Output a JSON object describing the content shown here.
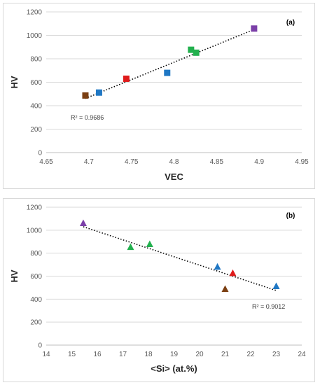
{
  "chart_data": [
    {
      "type": "scatter",
      "panel_label": "(a)",
      "xlabel": "VEC",
      "ylabel": "HV",
      "xlim": [
        4.65,
        4.95
      ],
      "ylim": [
        0,
        1200
      ],
      "xticks": [
        4.65,
        4.7,
        4.75,
        4.8,
        4.85,
        4.9,
        4.95
      ],
      "yticks": [
        0,
        200,
        400,
        600,
        800,
        1000,
        1200
      ],
      "xtick_labels": [
        "4.65",
        "4.7",
        "4.75",
        "4.8",
        "4.85",
        "4.9",
        "4.95"
      ],
      "ytick_labels": [
        "0",
        "200",
        "400",
        "600",
        "800",
        "1000",
        "1200"
      ],
      "grid": true,
      "marker": "square",
      "points": [
        {
          "x": 4.696,
          "y": 487,
          "color": "#7b3f12"
        },
        {
          "x": 4.712,
          "y": 512,
          "color": "#1f77c4"
        },
        {
          "x": 4.744,
          "y": 630,
          "color": "#e01b1b"
        },
        {
          "x": 4.792,
          "y": 680,
          "color": "#1f77c4"
        },
        {
          "x": 4.82,
          "y": 877,
          "color": "#22b04e"
        },
        {
          "x": 4.826,
          "y": 852,
          "color": "#22b04e"
        },
        {
          "x": 4.894,
          "y": 1058,
          "color": "#7b3fa8"
        }
      ],
      "trendline": {
        "x": [
          4.696,
          4.894
        ],
        "y": [
          462,
          1050
        ]
      },
      "r2_label": "R² = 0.9686"
    },
    {
      "type": "scatter",
      "panel_label": "(b)",
      "xlabel": "<Si> (at.%)",
      "ylabel": "HV",
      "xlim": [
        14,
        24
      ],
      "ylim": [
        0,
        1200
      ],
      "xticks": [
        14,
        15,
        16,
        17,
        18,
        19,
        20,
        21,
        22,
        23,
        24
      ],
      "yticks": [
        0,
        200,
        400,
        600,
        800,
        1000,
        1200
      ],
      "xtick_labels": [
        "14",
        "15",
        "16",
        "17",
        "18",
        "19",
        "20",
        "21",
        "22",
        "23",
        "24"
      ],
      "ytick_labels": [
        "0",
        "200",
        "400",
        "600",
        "800",
        "1000",
        "1200"
      ],
      "grid": true,
      "marker": "triangle",
      "points": [
        {
          "x": 15.45,
          "y": 1060,
          "color": "#7b3fa8"
        },
        {
          "x": 17.3,
          "y": 852,
          "color": "#22b04e"
        },
        {
          "x": 18.05,
          "y": 877,
          "color": "#22b04e"
        },
        {
          "x": 20.7,
          "y": 680,
          "color": "#1f77c4"
        },
        {
          "x": 21.3,
          "y": 625,
          "color": "#e01b1b"
        },
        {
          "x": 21.0,
          "y": 487,
          "color": "#7b3f12"
        },
        {
          "x": 23.0,
          "y": 512,
          "color": "#1f77c4"
        }
      ],
      "trendline": {
        "x": [
          15.45,
          23.0
        ],
        "y": [
          1030,
          475
        ]
      },
      "r2_label": "R² = 0.9012"
    }
  ]
}
